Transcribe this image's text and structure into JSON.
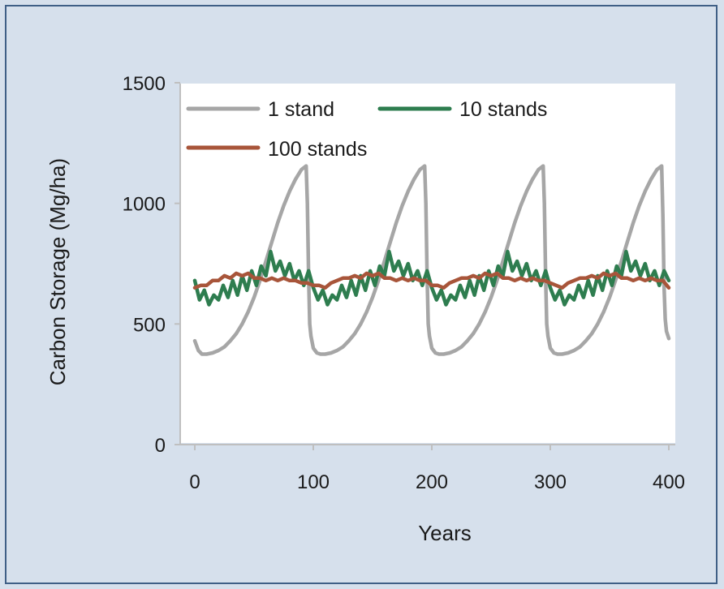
{
  "chart_data": {
    "type": "line",
    "title": "",
    "xlabel": "Years",
    "ylabel": "Carbon Storage (Mg/ha)",
    "xlim": [
      0,
      400
    ],
    "ylim": [
      0,
      1500
    ],
    "xticks": [
      "0",
      "100",
      "200",
      "300",
      "400"
    ],
    "yticks": [
      "0",
      "500",
      "1000",
      "1500"
    ],
    "grid": false,
    "legend_position": "top-left",
    "series": [
      {
        "name": "1 stand",
        "color": "#a6a6a6",
        "x": [
          0,
          3,
          6,
          10,
          15,
          20,
          25,
          30,
          35,
          40,
          45,
          50,
          55,
          60,
          65,
          70,
          75,
          80,
          85,
          90,
          94,
          95,
          96,
          97,
          98,
          100,
          103,
          106,
          110,
          115,
          120,
          125,
          130,
          135,
          140,
          145,
          150,
          155,
          160,
          165,
          170,
          175,
          180,
          185,
          190,
          194,
          195,
          196,
          197,
          198,
          200,
          203,
          206,
          210,
          215,
          220,
          225,
          230,
          235,
          240,
          245,
          250,
          255,
          260,
          265,
          270,
          275,
          280,
          285,
          290,
          294,
          295,
          296,
          297,
          298,
          300,
          303,
          306,
          310,
          315,
          320,
          325,
          330,
          335,
          340,
          345,
          350,
          355,
          360,
          365,
          370,
          375,
          380,
          385,
          390,
          394,
          395,
          396,
          397,
          398,
          400
        ],
        "values": [
          430,
          390,
          375,
          375,
          380,
          390,
          405,
          430,
          460,
          500,
          550,
          610,
          680,
          760,
          840,
          920,
          990,
          1050,
          1100,
          1140,
          1155,
          1000,
          700,
          500,
          450,
          400,
          380,
          375,
          375,
          380,
          390,
          405,
          430,
          460,
          500,
          550,
          610,
          680,
          760,
          840,
          920,
          990,
          1050,
          1100,
          1140,
          1155,
          1000,
          700,
          500,
          450,
          400,
          380,
          375,
          375,
          380,
          390,
          405,
          430,
          460,
          500,
          550,
          610,
          680,
          760,
          840,
          920,
          990,
          1050,
          1100,
          1140,
          1155,
          1000,
          700,
          500,
          450,
          400,
          380,
          375,
          375,
          380,
          390,
          405,
          430,
          460,
          500,
          550,
          610,
          680,
          760,
          840,
          920,
          990,
          1050,
          1100,
          1140,
          1155,
          950,
          650,
          520,
          470,
          440
        ]
      },
      {
        "name": "10 stands",
        "color": "#2e7d4f",
        "x": [
          0,
          4,
          8,
          12,
          16,
          20,
          24,
          28,
          32,
          36,
          40,
          44,
          48,
          52,
          56,
          60,
          64,
          68,
          72,
          76,
          80,
          84,
          88,
          92,
          96,
          100,
          104,
          108,
          112,
          116,
          120,
          124,
          128,
          132,
          136,
          140,
          144,
          148,
          152,
          156,
          160,
          164,
          168,
          172,
          176,
          180,
          184,
          188,
          192,
          196,
          200,
          204,
          208,
          212,
          216,
          220,
          224,
          228,
          232,
          236,
          240,
          244,
          248,
          252,
          256,
          260,
          264,
          268,
          272,
          276,
          280,
          284,
          288,
          292,
          296,
          300,
          304,
          308,
          312,
          316,
          320,
          324,
          328,
          332,
          336,
          340,
          344,
          348,
          352,
          356,
          360,
          364,
          368,
          372,
          376,
          380,
          384,
          388,
          392,
          396,
          400
        ],
        "values": [
          680,
          600,
          640,
          580,
          620,
          600,
          660,
          610,
          680,
          620,
          700,
          640,
          720,
          660,
          740,
          700,
          800,
          720,
          760,
          700,
          750,
          680,
          720,
          660,
          720,
          650,
          600,
          640,
          580,
          620,
          600,
          660,
          610,
          680,
          620,
          700,
          640,
          720,
          660,
          740,
          700,
          800,
          720,
          760,
          700,
          750,
          680,
          720,
          660,
          720,
          650,
          600,
          640,
          580,
          620,
          600,
          660,
          610,
          680,
          620,
          700,
          640,
          720,
          660,
          740,
          700,
          800,
          720,
          760,
          700,
          750,
          680,
          720,
          660,
          720,
          650,
          600,
          640,
          580,
          620,
          600,
          660,
          610,
          680,
          620,
          700,
          640,
          720,
          660,
          740,
          700,
          800,
          720,
          760,
          700,
          750,
          680,
          720,
          660,
          720,
          680
        ]
      },
      {
        "name": "100 stands",
        "color": "#a8553a",
        "x": [
          0,
          5,
          10,
          15,
          20,
          25,
          30,
          35,
          40,
          45,
          50,
          55,
          60,
          65,
          70,
          75,
          80,
          85,
          90,
          95,
          100,
          105,
          110,
          115,
          120,
          125,
          130,
          135,
          140,
          145,
          150,
          155,
          160,
          165,
          170,
          175,
          180,
          185,
          190,
          195,
          200,
          205,
          210,
          215,
          220,
          225,
          230,
          235,
          240,
          245,
          250,
          255,
          260,
          265,
          270,
          275,
          280,
          285,
          290,
          295,
          300,
          305,
          310,
          315,
          320,
          325,
          330,
          335,
          340,
          345,
          350,
          355,
          360,
          365,
          370,
          375,
          380,
          385,
          390,
          395,
          400
        ],
        "values": [
          650,
          660,
          660,
          680,
          680,
          700,
          690,
          710,
          700,
          710,
          690,
          690,
          680,
          690,
          680,
          690,
          680,
          680,
          670,
          670,
          660,
          660,
          650,
          670,
          680,
          690,
          690,
          700,
          690,
          710,
          700,
          710,
          690,
          690,
          680,
          690,
          680,
          690,
          680,
          680,
          660,
          660,
          650,
          670,
          680,
          690,
          690,
          700,
          690,
          710,
          700,
          710,
          690,
          690,
          680,
          690,
          680,
          690,
          680,
          680,
          670,
          660,
          650,
          670,
          680,
          690,
          690,
          700,
          690,
          710,
          700,
          710,
          690,
          690,
          680,
          690,
          680,
          690,
          680,
          680,
          650
        ]
      }
    ]
  }
}
